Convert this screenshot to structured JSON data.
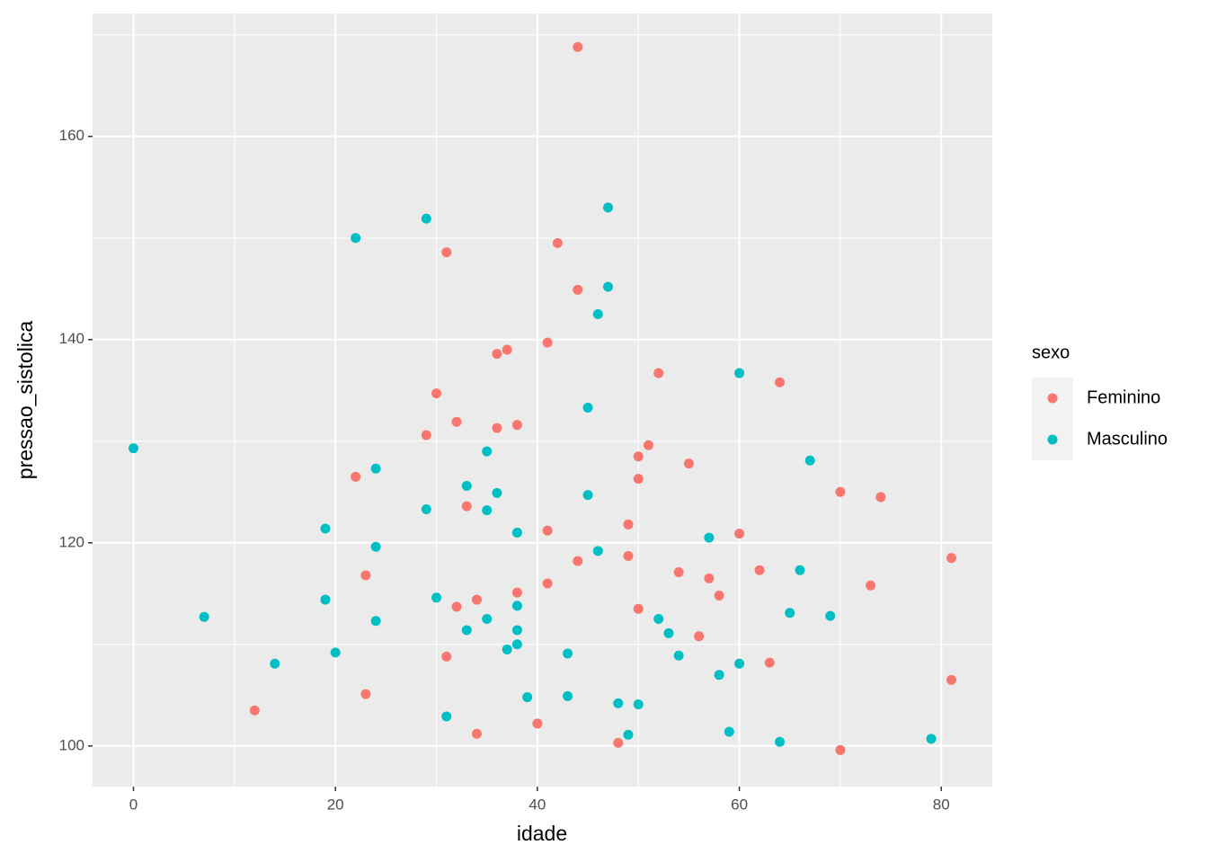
{
  "chart_data": {
    "type": "scatter",
    "x_label": "idade",
    "y_label": "pressao_sistolica",
    "legend_title": "sexo",
    "legend_position": "right",
    "grid": true,
    "xlim": [
      -4.05,
      85.05
    ],
    "ylim": [
      96.0,
      172.1
    ],
    "xticks": [
      0,
      20,
      40,
      60,
      80
    ],
    "yticks": [
      100,
      120,
      140,
      160
    ],
    "series": [
      {
        "name": "Feminino",
        "color": "#F8766D",
        "x": [
          44,
          42,
          31,
          44,
          41,
          37,
          36,
          52,
          64,
          30,
          32,
          38,
          36,
          29,
          51,
          50,
          55,
          22,
          50,
          70,
          74,
          33,
          49,
          41,
          60,
          81,
          49,
          44,
          62,
          54,
          23,
          57,
          73,
          41,
          38,
          58,
          34,
          32,
          50,
          56,
          31,
          63,
          81,
          23,
          12,
          40,
          34,
          48,
          70
        ],
        "values": [
          168.8,
          149.5,
          148.6,
          144.9,
          139.7,
          139.0,
          138.6,
          136.7,
          135.8,
          134.7,
          131.9,
          131.6,
          131.3,
          130.6,
          129.6,
          128.5,
          127.8,
          126.5,
          126.3,
          125.0,
          124.5,
          123.6,
          121.8,
          121.2,
          120.9,
          118.5,
          118.7,
          118.2,
          117.3,
          117.1,
          116.8,
          116.5,
          115.8,
          116.0,
          115.1,
          114.8,
          114.4,
          113.7,
          113.5,
          110.8,
          108.8,
          108.2,
          106.5,
          105.1,
          103.5,
          102.2,
          101.2,
          100.3,
          99.6
        ]
      },
      {
        "name": "Masculino",
        "color": "#00BFC4",
        "x": [
          0,
          29,
          22,
          47,
          47,
          46,
          60,
          45,
          35,
          67,
          24,
          33,
          36,
          45,
          29,
          35,
          19,
          38,
          57,
          24,
          46,
          66,
          19,
          30,
          38,
          65,
          7,
          69,
          35,
          52,
          24,
          33,
          38,
          53,
          38,
          37,
          20,
          43,
          54,
          14,
          60,
          58,
          39,
          43,
          48,
          50,
          31,
          59,
          49,
          64,
          79
        ],
        "values": [
          129.3,
          151.9,
          150.0,
          153.0,
          145.2,
          142.5,
          136.7,
          133.3,
          129.0,
          128.1,
          127.3,
          125.6,
          124.9,
          124.7,
          123.3,
          123.2,
          121.4,
          121.0,
          120.5,
          119.6,
          119.2,
          117.3,
          114.4,
          114.6,
          113.8,
          113.1,
          112.7,
          112.8,
          112.5,
          112.5,
          112.3,
          111.4,
          111.4,
          111.1,
          110.0,
          109.5,
          109.2,
          109.1,
          108.9,
          108.1,
          108.1,
          107.0,
          104.8,
          104.9,
          104.2,
          104.1,
          102.9,
          101.4,
          101.1,
          100.4,
          100.7
        ]
      }
    ]
  }
}
